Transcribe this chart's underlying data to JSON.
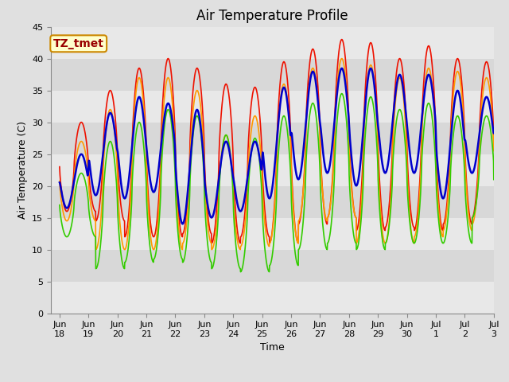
{
  "title": "Air Temperature Profile",
  "xlabel": "Time",
  "ylabel": "Air Temperature (C)",
  "ylim": [
    0,
    45
  ],
  "yticks": [
    0,
    5,
    10,
    15,
    20,
    25,
    30,
    35,
    40,
    45
  ],
  "fig_bg_color": "#e0e0e0",
  "plot_bg_color": "#e8e8e8",
  "band_colors": [
    "#e8e8e8",
    "#d8d8d8"
  ],
  "grid_color": "#ffffff",
  "annotation_text": "TZ_tmet",
  "annotation_bg": "#ffffcc",
  "annotation_border": "#cc8800",
  "annotation_text_color": "#990000",
  "line_colors": {
    "AirT 0.35m": "#ee1100",
    "AirT 1.8m": "#ff9900",
    "AirT 6.0m": "#33cc00",
    "AirT 22m": "#0000cc"
  },
  "line_widths": {
    "AirT 0.35m": 1.2,
    "AirT 1.8m": 1.2,
    "AirT 6.0m": 1.2,
    "AirT 22m": 1.8
  },
  "x_tick_labels": [
    "Jun\n18",
    "Jun\n19",
    "Jun\n20",
    "Jun\n21",
    "Jun\n22",
    "Jun\n23",
    "Jun\n24",
    "Jun\n25",
    "Jun\n26",
    "Jun\n27",
    "Jun\n28",
    "Jun\n29",
    "Jun\n30",
    "Jul\n1",
    "Jul\n2",
    "Jul\n3"
  ],
  "n_days": 15,
  "ppd": 144,
  "peaks_035": [
    30.0,
    35.0,
    38.5,
    40.0,
    38.5,
    36.0,
    35.5,
    39.5,
    41.5,
    43.0,
    42.5,
    40.0,
    42.0,
    40.0,
    39.5
  ],
  "mins_035": [
    16.0,
    14.5,
    12.0,
    12.0,
    12.5,
    11.0,
    12.0,
    11.0,
    14.0,
    15.0,
    13.0,
    13.5,
    13.0,
    14.0,
    15.0
  ],
  "peaks_18": [
    27.0,
    32.0,
    37.0,
    37.0,
    35.0,
    28.0,
    31.0,
    36.0,
    38.5,
    40.0,
    39.0,
    37.0,
    38.5,
    38.0,
    37.0
  ],
  "mins_18": [
    14.5,
    10.0,
    10.0,
    10.0,
    11.0,
    10.0,
    10.5,
    11.0,
    14.5,
    15.0,
    11.0,
    11.0,
    12.0,
    13.0,
    14.0
  ],
  "peaks_60": [
    22.0,
    27.0,
    30.0,
    32.0,
    31.0,
    28.0,
    27.5,
    31.0,
    33.0,
    34.5,
    34.0,
    32.0,
    33.0,
    31.0,
    31.0
  ],
  "mins_60": [
    12.0,
    7.0,
    8.0,
    8.5,
    8.0,
    7.0,
    6.5,
    7.5,
    10.0,
    11.0,
    10.0,
    11.0,
    11.0,
    11.0,
    15.0
  ],
  "peaks_22": [
    25.0,
    31.5,
    34.0,
    33.0,
    32.0,
    27.0,
    27.0,
    35.5,
    38.0,
    38.5,
    38.5,
    37.5,
    37.5,
    35.0,
    34.0
  ],
  "mins_22": [
    16.5,
    18.5,
    18.0,
    19.0,
    14.0,
    15.0,
    16.0,
    18.0,
    21.0,
    22.0,
    20.0,
    22.0,
    22.0,
    18.0,
    22.0
  ],
  "title_fontsize": 12,
  "axis_label_fontsize": 9,
  "tick_fontsize": 8,
  "legend_fontsize": 9
}
